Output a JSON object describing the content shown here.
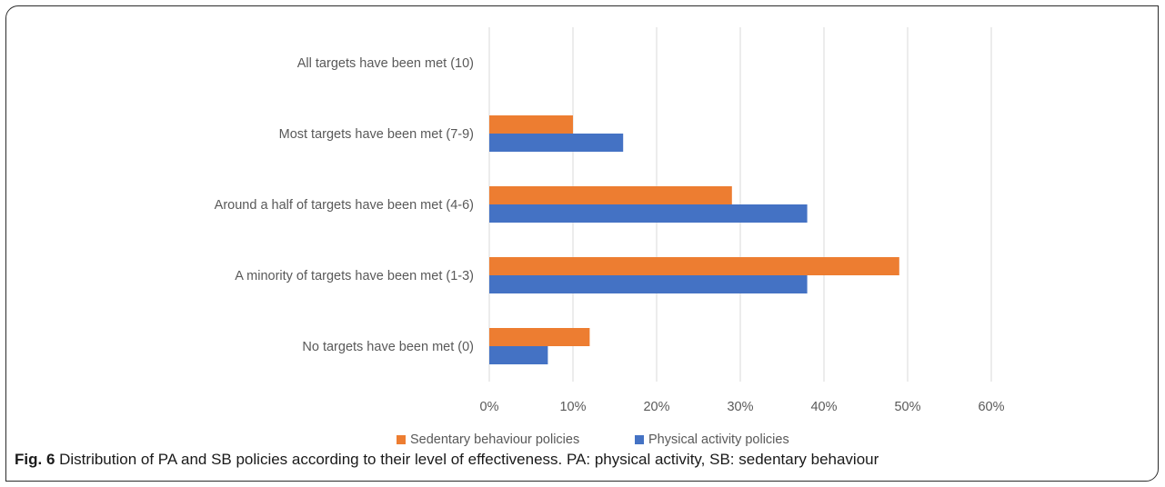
{
  "colors": {
    "sedentary": "#ED7D31",
    "physical": "#4472C4",
    "grid": "#d9d9d9",
    "label_text": "#595959"
  },
  "chart_data": {
    "type": "bar",
    "orientation": "horizontal",
    "categories": [
      "All targets have been met (10)",
      "Most targets have been met (7-9)",
      "Around a half of targets have been met (4-6)",
      "A minority of targets have been met (1-3)",
      "No targets have been met (0)"
    ],
    "series": [
      {
        "name": "Sedentary behaviour policies",
        "values": [
          0,
          10,
          29,
          49,
          12
        ]
      },
      {
        "name": "Physical activity policies",
        "values": [
          0,
          16,
          38,
          38,
          7
        ]
      }
    ],
    "xlim": [
      0,
      60
    ],
    "xticks": [
      "0%",
      "10%",
      "20%",
      "30%",
      "40%",
      "50%",
      "60%"
    ],
    "grid": true,
    "legend": "bottom"
  },
  "caption": {
    "label": "Fig. 6",
    "text": " Distribution of PA and SB policies according to their level of effectiveness. PA: physical activity, SB: sedentary behaviour"
  }
}
